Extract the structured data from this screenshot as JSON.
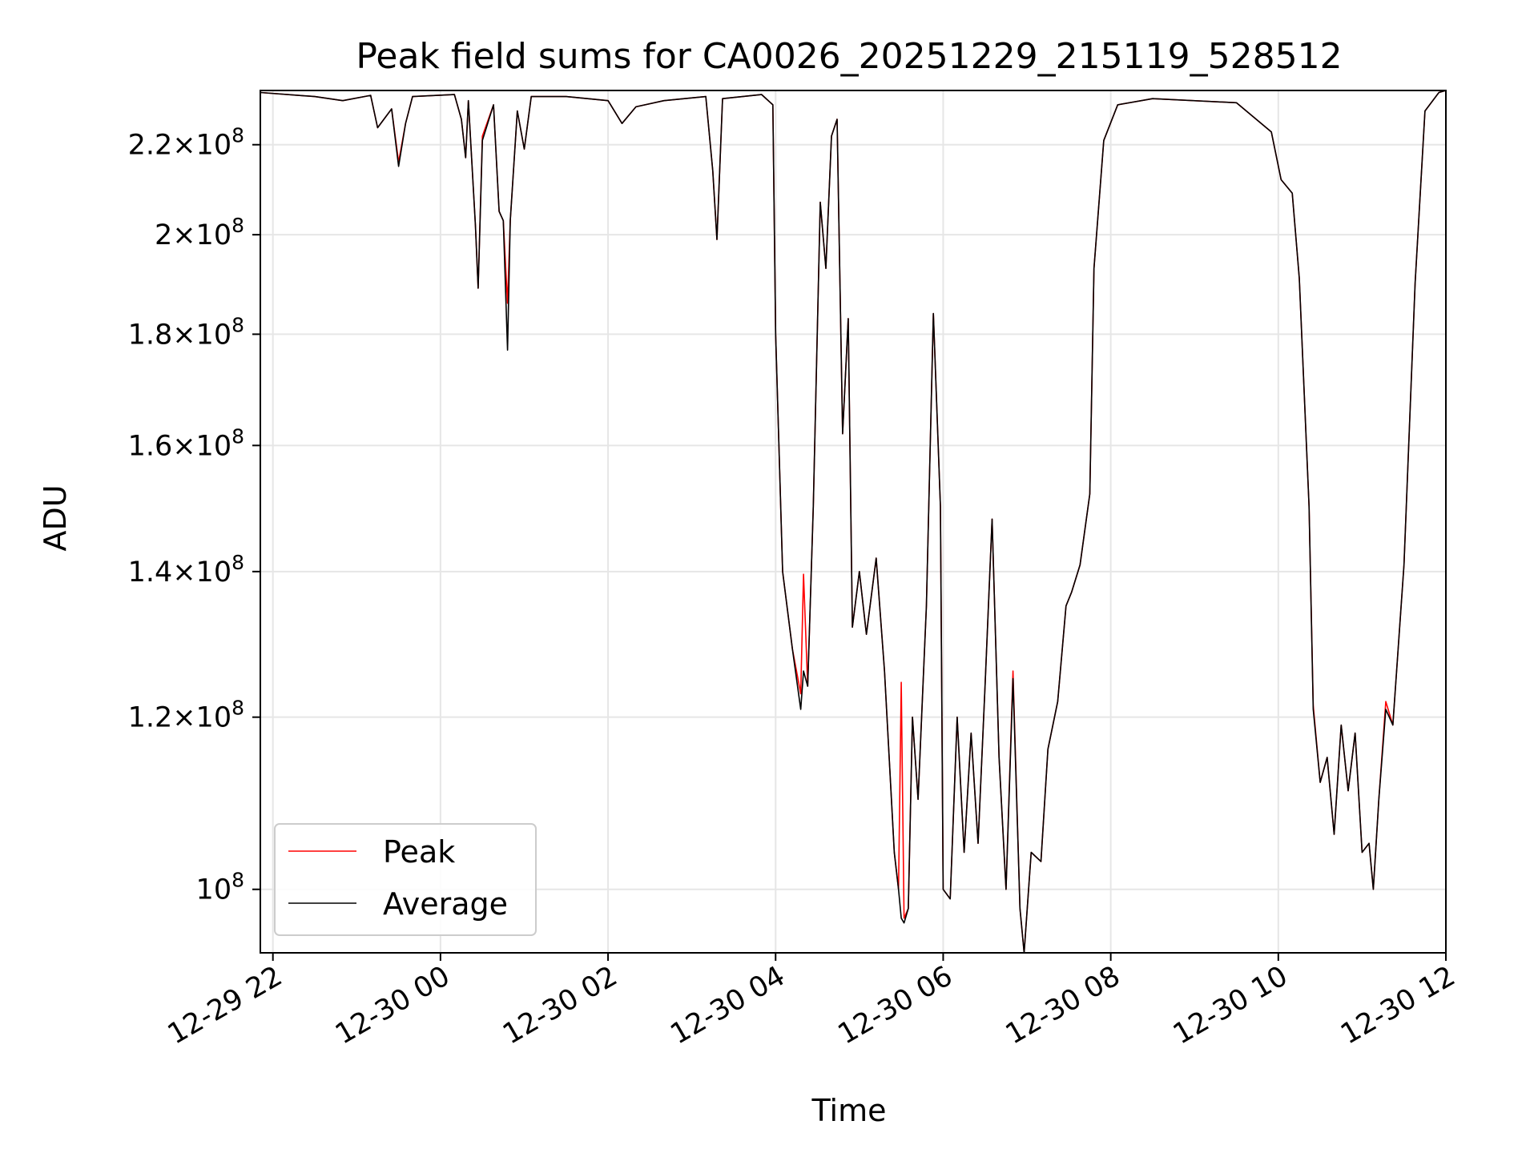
{
  "chart_data": {
    "type": "line",
    "title": "Peak field sums for CA0026_20251229_215119_528512",
    "xlabel": "Time",
    "ylabel": "ADU",
    "y_scale": "log",
    "grid": true,
    "legend_position": "lower-left",
    "x_range": [
      "2025-12-29 21:51",
      "2025-12-30 12:00"
    ],
    "ylim": [
      93500000,
      233000000
    ],
    "x_ticks": [
      {
        "t": "2025-12-29 22:00",
        "label": "12-29 22"
      },
      {
        "t": "2025-12-30 00:00",
        "label": "12-30 00"
      },
      {
        "t": "2025-12-30 02:00",
        "label": "12-30 02"
      },
      {
        "t": "2025-12-30 04:00",
        "label": "12-30 04"
      },
      {
        "t": "2025-12-30 06:00",
        "label": "12-30 06"
      },
      {
        "t": "2025-12-30 08:00",
        "label": "12-30 08"
      },
      {
        "t": "2025-12-30 10:00",
        "label": "12-30 10"
      },
      {
        "t": "2025-12-30 12:00",
        "label": "12-30 12"
      }
    ],
    "y_ticks": [
      {
        "value": 100000000,
        "mantissa": "",
        "exp": "8"
      },
      {
        "value": 120000000,
        "mantissa": "1.2",
        "exp": "8"
      },
      {
        "value": 140000000,
        "mantissa": "1.4",
        "exp": "8"
      },
      {
        "value": 160000000,
        "mantissa": "1.6",
        "exp": "8"
      },
      {
        "value": 180000000,
        "mantissa": "1.8",
        "exp": "8"
      },
      {
        "value": 200000000,
        "mantissa": "2",
        "exp": "8"
      },
      {
        "value": 220000000,
        "mantissa": "2.2",
        "exp": "8"
      }
    ],
    "series": [
      {
        "name": "Peak",
        "color": "#ff0000",
        "points": [
          [
            "2025-12-29 21:51",
            232500000
          ],
          [
            "2025-12-29 22:30",
            231500000
          ],
          [
            "2025-12-29 22:50",
            230500000
          ],
          [
            "2025-12-29 23:10",
            231800000
          ],
          [
            "2025-12-29 23:15",
            224000000
          ],
          [
            "2025-12-29 23:25",
            228500000
          ],
          [
            "2025-12-29 23:30",
            216000000
          ],
          [
            "2025-12-29 23:35",
            225000000
          ],
          [
            "2025-12-29 23:40",
            231500000
          ],
          [
            "2025-12-30 00:10",
            232000000
          ],
          [
            "2025-12-30 00:15",
            226000000
          ],
          [
            "2025-12-30 00:18",
            217000000
          ],
          [
            "2025-12-30 00:20",
            230500000
          ],
          [
            "2025-12-30 00:25",
            202000000
          ],
          [
            "2025-12-30 00:27",
            189000000
          ],
          [
            "2025-12-30 00:30",
            222000000
          ],
          [
            "2025-12-30 00:38",
            229500000
          ],
          [
            "2025-12-30 00:42",
            205000000
          ],
          [
            "2025-12-30 00:45",
            203000000
          ],
          [
            "2025-12-30 00:48",
            186000000
          ],
          [
            "2025-12-30 00:50",
            203000000
          ],
          [
            "2025-12-30 00:55",
            228000000
          ],
          [
            "2025-12-30 01:00",
            219000000
          ],
          [
            "2025-12-30 01:05",
            231500000
          ],
          [
            "2025-12-30 01:30",
            231500000
          ],
          [
            "2025-12-30 02:00",
            230500000
          ],
          [
            "2025-12-30 02:10",
            225000000
          ],
          [
            "2025-12-30 02:20",
            229000000
          ],
          [
            "2025-12-30 02:40",
            230500000
          ],
          [
            "2025-12-30 03:10",
            231500000
          ],
          [
            "2025-12-30 03:15",
            214000000
          ],
          [
            "2025-12-30 03:18",
            199000000
          ],
          [
            "2025-12-30 03:22",
            231000000
          ],
          [
            "2025-12-30 03:50",
            232000000
          ],
          [
            "2025-12-30 03:58",
            229500000
          ],
          [
            "2025-12-30 04:00",
            180000000
          ],
          [
            "2025-12-30 04:05",
            140000000
          ],
          [
            "2025-12-30 04:12",
            129000000
          ],
          [
            "2025-12-30 04:18",
            123000000
          ],
          [
            "2025-12-30 04:20",
            139600000
          ],
          [
            "2025-12-30 04:23",
            124000000
          ],
          [
            "2025-12-30 04:27",
            150000000
          ],
          [
            "2025-12-30 04:32",
            207000000
          ],
          [
            "2025-12-30 04:36",
            193000000
          ],
          [
            "2025-12-30 04:40",
            222000000
          ],
          [
            "2025-12-30 04:44",
            226000000
          ],
          [
            "2025-12-30 04:48",
            162000000
          ],
          [
            "2025-12-30 04:52",
            183000000
          ],
          [
            "2025-12-30 04:55",
            132000000
          ],
          [
            "2025-12-30 05:00",
            140000000
          ],
          [
            "2025-12-30 05:05",
            131000000
          ],
          [
            "2025-12-30 05:12",
            142000000
          ],
          [
            "2025-12-30 05:18",
            126000000
          ],
          [
            "2025-12-30 05:25",
            104000000
          ],
          [
            "2025-12-30 05:28",
            100000000
          ],
          [
            "2025-12-30 05:30",
            124500000
          ],
          [
            "2025-12-30 05:32",
            97000000
          ],
          [
            "2025-12-30 05:35",
            98000000
          ],
          [
            "2025-12-30 05:38",
            120000000
          ],
          [
            "2025-12-30 05:42",
            110000000
          ],
          [
            "2025-12-30 05:48",
            135000000
          ],
          [
            "2025-12-30 05:53",
            184000000
          ],
          [
            "2025-12-30 05:58",
            150000000
          ],
          [
            "2025-12-30 06:00",
            100000000
          ],
          [
            "2025-12-30 06:05",
            99000000
          ],
          [
            "2025-12-30 06:10",
            120000000
          ],
          [
            "2025-12-30 06:15",
            104000000
          ],
          [
            "2025-12-30 06:20",
            118000000
          ],
          [
            "2025-12-30 06:25",
            105000000
          ],
          [
            "2025-12-30 06:30",
            124000000
          ],
          [
            "2025-12-30 06:35",
            148000000
          ],
          [
            "2025-12-30 06:40",
            115000000
          ],
          [
            "2025-12-30 06:45",
            100000000
          ],
          [
            "2025-12-30 06:50",
            126000000
          ],
          [
            "2025-12-30 06:55",
            98000000
          ],
          [
            "2025-12-30 06:58",
            93500000
          ],
          [
            "2025-12-30 07:03",
            104000000
          ],
          [
            "2025-12-30 07:10",
            103000000
          ],
          [
            "2025-12-30 07:15",
            116000000
          ],
          [
            "2025-12-30 07:22",
            122000000
          ],
          [
            "2025-12-30 07:28",
            135000000
          ],
          [
            "2025-12-30 07:32",
            137000000
          ],
          [
            "2025-12-30 07:38",
            141000000
          ],
          [
            "2025-12-30 07:45",
            152000000
          ],
          [
            "2025-12-30 07:48",
            193000000
          ],
          [
            "2025-12-30 07:55",
            221000000
          ],
          [
            "2025-12-30 08:05",
            229500000
          ],
          [
            "2025-12-30 08:30",
            231000000
          ],
          [
            "2025-12-30 09:30",
            230000000
          ],
          [
            "2025-12-30 09:55",
            223000000
          ],
          [
            "2025-12-30 10:02",
            212000000
          ],
          [
            "2025-12-30 10:10",
            209000000
          ],
          [
            "2025-12-30 10:15",
            191000000
          ],
          [
            "2025-12-30 10:22",
            150000000
          ],
          [
            "2025-12-30 10:25",
            121500000
          ],
          [
            "2025-12-30 10:30",
            112000000
          ],
          [
            "2025-12-30 10:35",
            115000000
          ],
          [
            "2025-12-30 10:40",
            106000000
          ],
          [
            "2025-12-30 10:45",
            119000000
          ],
          [
            "2025-12-30 10:50",
            111000000
          ],
          [
            "2025-12-30 10:55",
            118000000
          ],
          [
            "2025-12-30 11:00",
            104000000
          ],
          [
            "2025-12-30 11:05",
            105000000
          ],
          [
            "2025-12-30 11:08",
            100000000
          ],
          [
            "2025-12-30 11:12",
            110000000
          ],
          [
            "2025-12-30 11:17",
            122000000
          ],
          [
            "2025-12-30 11:22",
            119000000
          ],
          [
            "2025-12-30 11:30",
            141000000
          ],
          [
            "2025-12-30 11:38",
            190000000
          ],
          [
            "2025-12-30 11:45",
            228000000
          ],
          [
            "2025-12-30 11:55",
            232500000
          ],
          [
            "2025-12-30 12:00",
            233000000
          ]
        ]
      },
      {
        "name": "Average",
        "color": "#000000",
        "points": [
          [
            "2025-12-29 21:51",
            232500000
          ],
          [
            "2025-12-29 22:30",
            231500000
          ],
          [
            "2025-12-29 22:50",
            230500000
          ],
          [
            "2025-12-29 23:10",
            231800000
          ],
          [
            "2025-12-29 23:15",
            224000000
          ],
          [
            "2025-12-29 23:25",
            228500000
          ],
          [
            "2025-12-29 23:30",
            215000000
          ],
          [
            "2025-12-29 23:35",
            225000000
          ],
          [
            "2025-12-29 23:40",
            231500000
          ],
          [
            "2025-12-30 00:10",
            232000000
          ],
          [
            "2025-12-30 00:15",
            226000000
          ],
          [
            "2025-12-30 00:18",
            217000000
          ],
          [
            "2025-12-30 00:20",
            230500000
          ],
          [
            "2025-12-30 00:25",
            202000000
          ],
          [
            "2025-12-30 00:27",
            189000000
          ],
          [
            "2025-12-30 00:30",
            221000000
          ],
          [
            "2025-12-30 00:38",
            229500000
          ],
          [
            "2025-12-30 00:42",
            205000000
          ],
          [
            "2025-12-30 00:45",
            203000000
          ],
          [
            "2025-12-30 00:48",
            177000000
          ],
          [
            "2025-12-30 00:50",
            203000000
          ],
          [
            "2025-12-30 00:55",
            228000000
          ],
          [
            "2025-12-30 01:00",
            219000000
          ],
          [
            "2025-12-30 01:05",
            231500000
          ],
          [
            "2025-12-30 01:30",
            231500000
          ],
          [
            "2025-12-30 02:00",
            230500000
          ],
          [
            "2025-12-30 02:10",
            225000000
          ],
          [
            "2025-12-30 02:20",
            229000000
          ],
          [
            "2025-12-30 02:40",
            230500000
          ],
          [
            "2025-12-30 03:10",
            231500000
          ],
          [
            "2025-12-30 03:15",
            214000000
          ],
          [
            "2025-12-30 03:18",
            199000000
          ],
          [
            "2025-12-30 03:22",
            231000000
          ],
          [
            "2025-12-30 03:50",
            232000000
          ],
          [
            "2025-12-30 03:58",
            229500000
          ],
          [
            "2025-12-30 04:00",
            180000000
          ],
          [
            "2025-12-30 04:05",
            140000000
          ],
          [
            "2025-12-30 04:12",
            129000000
          ],
          [
            "2025-12-30 04:18",
            121000000
          ],
          [
            "2025-12-30 04:20",
            126000000
          ],
          [
            "2025-12-30 04:23",
            124000000
          ],
          [
            "2025-12-30 04:27",
            150000000
          ],
          [
            "2025-12-30 04:32",
            207000000
          ],
          [
            "2025-12-30 04:36",
            193000000
          ],
          [
            "2025-12-30 04:40",
            222000000
          ],
          [
            "2025-12-30 04:44",
            226000000
          ],
          [
            "2025-12-30 04:48",
            162000000
          ],
          [
            "2025-12-30 04:52",
            183000000
          ],
          [
            "2025-12-30 04:55",
            132000000
          ],
          [
            "2025-12-30 05:00",
            140000000
          ],
          [
            "2025-12-30 05:05",
            131000000
          ],
          [
            "2025-12-30 05:12",
            142000000
          ],
          [
            "2025-12-30 05:18",
            126000000
          ],
          [
            "2025-12-30 05:25",
            104000000
          ],
          [
            "2025-12-30 05:28",
            100000000
          ],
          [
            "2025-12-30 05:30",
            97000000
          ],
          [
            "2025-12-30 05:32",
            96500000
          ],
          [
            "2025-12-30 05:35",
            98000000
          ],
          [
            "2025-12-30 05:38",
            120000000
          ],
          [
            "2025-12-30 05:42",
            110000000
          ],
          [
            "2025-12-30 05:48",
            135000000
          ],
          [
            "2025-12-30 05:53",
            184000000
          ],
          [
            "2025-12-30 05:58",
            150000000
          ],
          [
            "2025-12-30 06:00",
            100000000
          ],
          [
            "2025-12-30 06:05",
            99000000
          ],
          [
            "2025-12-30 06:10",
            120000000
          ],
          [
            "2025-12-30 06:15",
            104000000
          ],
          [
            "2025-12-30 06:20",
            118000000
          ],
          [
            "2025-12-30 06:25",
            105000000
          ],
          [
            "2025-12-30 06:30",
            124000000
          ],
          [
            "2025-12-30 06:35",
            148000000
          ],
          [
            "2025-12-30 06:40",
            115000000
          ],
          [
            "2025-12-30 06:45",
            100000000
          ],
          [
            "2025-12-30 06:50",
            125000000
          ],
          [
            "2025-12-30 06:55",
            98000000
          ],
          [
            "2025-12-30 06:58",
            93500000
          ],
          [
            "2025-12-30 07:03",
            104000000
          ],
          [
            "2025-12-30 07:10",
            103000000
          ],
          [
            "2025-12-30 07:15",
            116000000
          ],
          [
            "2025-12-30 07:22",
            122000000
          ],
          [
            "2025-12-30 07:28",
            135000000
          ],
          [
            "2025-12-30 07:32",
            137000000
          ],
          [
            "2025-12-30 07:38",
            141000000
          ],
          [
            "2025-12-30 07:45",
            152000000
          ],
          [
            "2025-12-30 07:48",
            193000000
          ],
          [
            "2025-12-30 07:55",
            221000000
          ],
          [
            "2025-12-30 08:05",
            229500000
          ],
          [
            "2025-12-30 08:30",
            231000000
          ],
          [
            "2025-12-30 09:30",
            230000000
          ],
          [
            "2025-12-30 09:55",
            223000000
          ],
          [
            "2025-12-30 10:02",
            212000000
          ],
          [
            "2025-12-30 10:10",
            209000000
          ],
          [
            "2025-12-30 10:15",
            191000000
          ],
          [
            "2025-12-30 10:22",
            150000000
          ],
          [
            "2025-12-30 10:25",
            121000000
          ],
          [
            "2025-12-30 10:30",
            112000000
          ],
          [
            "2025-12-30 10:35",
            115000000
          ],
          [
            "2025-12-30 10:40",
            106000000
          ],
          [
            "2025-12-30 10:45",
            119000000
          ],
          [
            "2025-12-30 10:50",
            111000000
          ],
          [
            "2025-12-30 10:55",
            118000000
          ],
          [
            "2025-12-30 11:00",
            104000000
          ],
          [
            "2025-12-30 11:05",
            105000000
          ],
          [
            "2025-12-30 11:08",
            100000000
          ],
          [
            "2025-12-30 11:12",
            110000000
          ],
          [
            "2025-12-30 11:17",
            121000000
          ],
          [
            "2025-12-30 11:22",
            119000000
          ],
          [
            "2025-12-30 11:30",
            141000000
          ],
          [
            "2025-12-30 11:38",
            190000000
          ],
          [
            "2025-12-30 11:45",
            228000000
          ],
          [
            "2025-12-30 11:55",
            232500000
          ],
          [
            "2025-12-30 12:00",
            233000000
          ]
        ]
      }
    ]
  }
}
